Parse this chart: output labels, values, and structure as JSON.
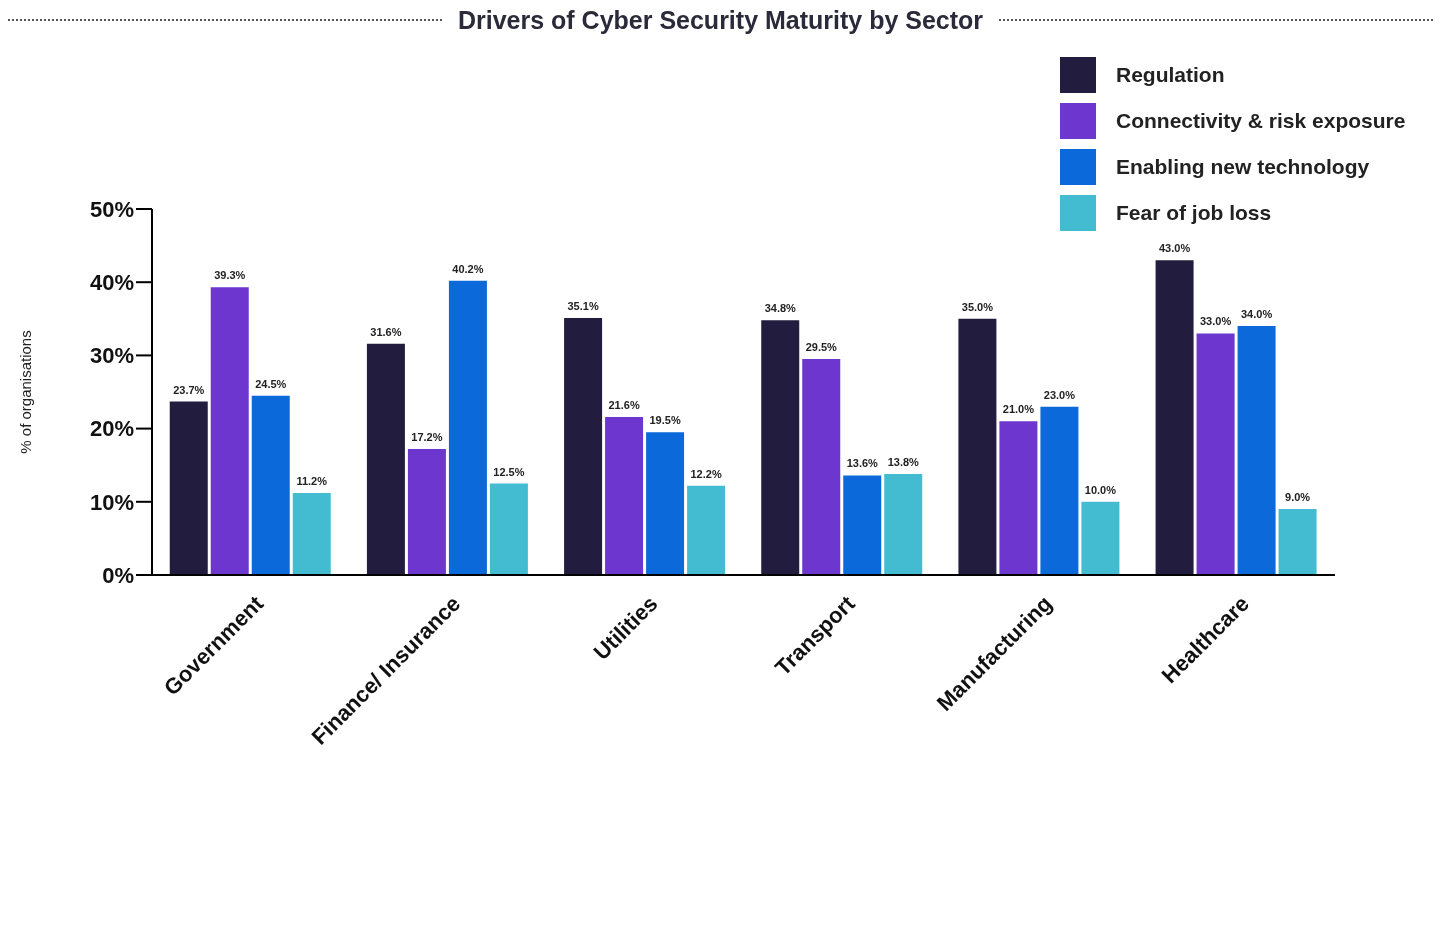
{
  "chart_data": {
    "type": "bar",
    "title": "Drivers of Cyber Security Maturity by Sector",
    "ylabel": "% of organisations",
    "categories": [
      "Government",
      "Finance/ Insurance",
      "Utilities",
      "Transport",
      "Manufacturing",
      "Healthcare"
    ],
    "series": [
      {
        "name": "Regulation",
        "color": "#221c3f",
        "values": [
          23.7,
          31.6,
          35.1,
          34.8,
          35.0,
          43.0
        ],
        "value_labels": [
          "23.7%",
          "31.6%",
          "35.1%",
          "34.8%",
          "35.0%",
          "43.0%"
        ]
      },
      {
        "name": "Connectivity & risk exposure",
        "color": "#6c36cf",
        "values": [
          39.3,
          17.2,
          21.6,
          29.5,
          21.0,
          33.0
        ],
        "value_labels": [
          "39.3%",
          "17.2%",
          "21.6%",
          "29.5%",
          "21.0%",
          "33.0%"
        ]
      },
      {
        "name": "Enabling new technology",
        "color": "#0b69d9",
        "values": [
          24.5,
          40.2,
          19.5,
          13.6,
          23.0,
          34.0
        ],
        "value_labels": [
          "24.5%",
          "40.2%",
          "19.5%",
          "13.6%",
          "23.0%",
          "34.0%"
        ]
      },
      {
        "name": "Fear of job loss",
        "color": "#43bcd1",
        "values": [
          11.2,
          12.5,
          12.2,
          13.8,
          10.0,
          9.0
        ],
        "value_labels": [
          "11.2%",
          "12.5%",
          "12.2%",
          "13.8%",
          "10.0%",
          "9.0%"
        ]
      }
    ],
    "ylim": [
      0,
      50
    ],
    "yticks": [
      {
        "value": 0,
        "label": "0%"
      },
      {
        "value": 10,
        "label": "10%"
      },
      {
        "value": 20,
        "label": "20%"
      },
      {
        "value": 30,
        "label": "30%"
      },
      {
        "value": 40,
        "label": "40%"
      },
      {
        "value": 50,
        "label": "50%"
      }
    ],
    "grid": false,
    "legend": "top right"
  }
}
